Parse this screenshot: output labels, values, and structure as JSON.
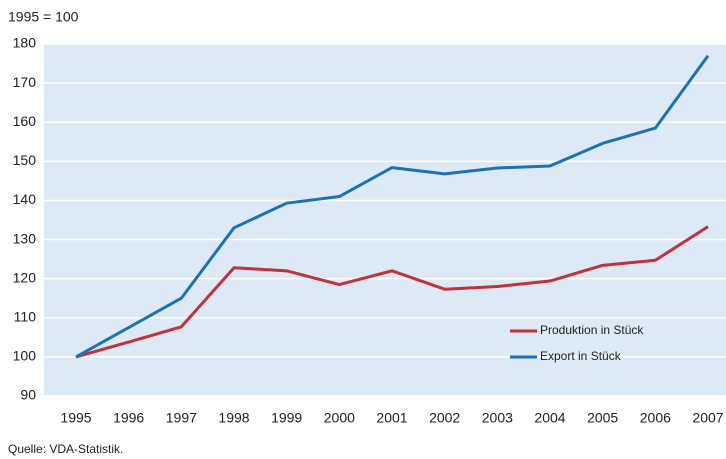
{
  "chart_data": {
    "type": "line",
    "y_label": "1995 = 100",
    "source": "Quelle: VDA-Statistik.",
    "categories": [
      "1995",
      "1996",
      "1997",
      "1998",
      "1999",
      "2000",
      "2001",
      "2002",
      "2003",
      "2004",
      "2005",
      "2006",
      "2007"
    ],
    "series": [
      {
        "name": "Produktion in Stück",
        "color": "#c0323c",
        "values": [
          100,
          103.8,
          107.7,
          122.8,
          122,
          118.5,
          122,
          117.3,
          118,
          119.4,
          123.4,
          124.7,
          133.3
        ]
      },
      {
        "name": "Export in Stück",
        "color": "#1b72b5",
        "values": [
          100,
          107.5,
          115,
          133,
          139.3,
          141,
          148.4,
          146.8,
          148.3,
          148.8,
          154.6,
          158.5,
          177
        ]
      }
    ],
    "ylim": [
      90,
      180
    ],
    "yticks": [
      90,
      100,
      110,
      120,
      130,
      140,
      150,
      160,
      170,
      180
    ],
    "grid": true,
    "background": "#dde9f5",
    "legend": "lower right"
  }
}
